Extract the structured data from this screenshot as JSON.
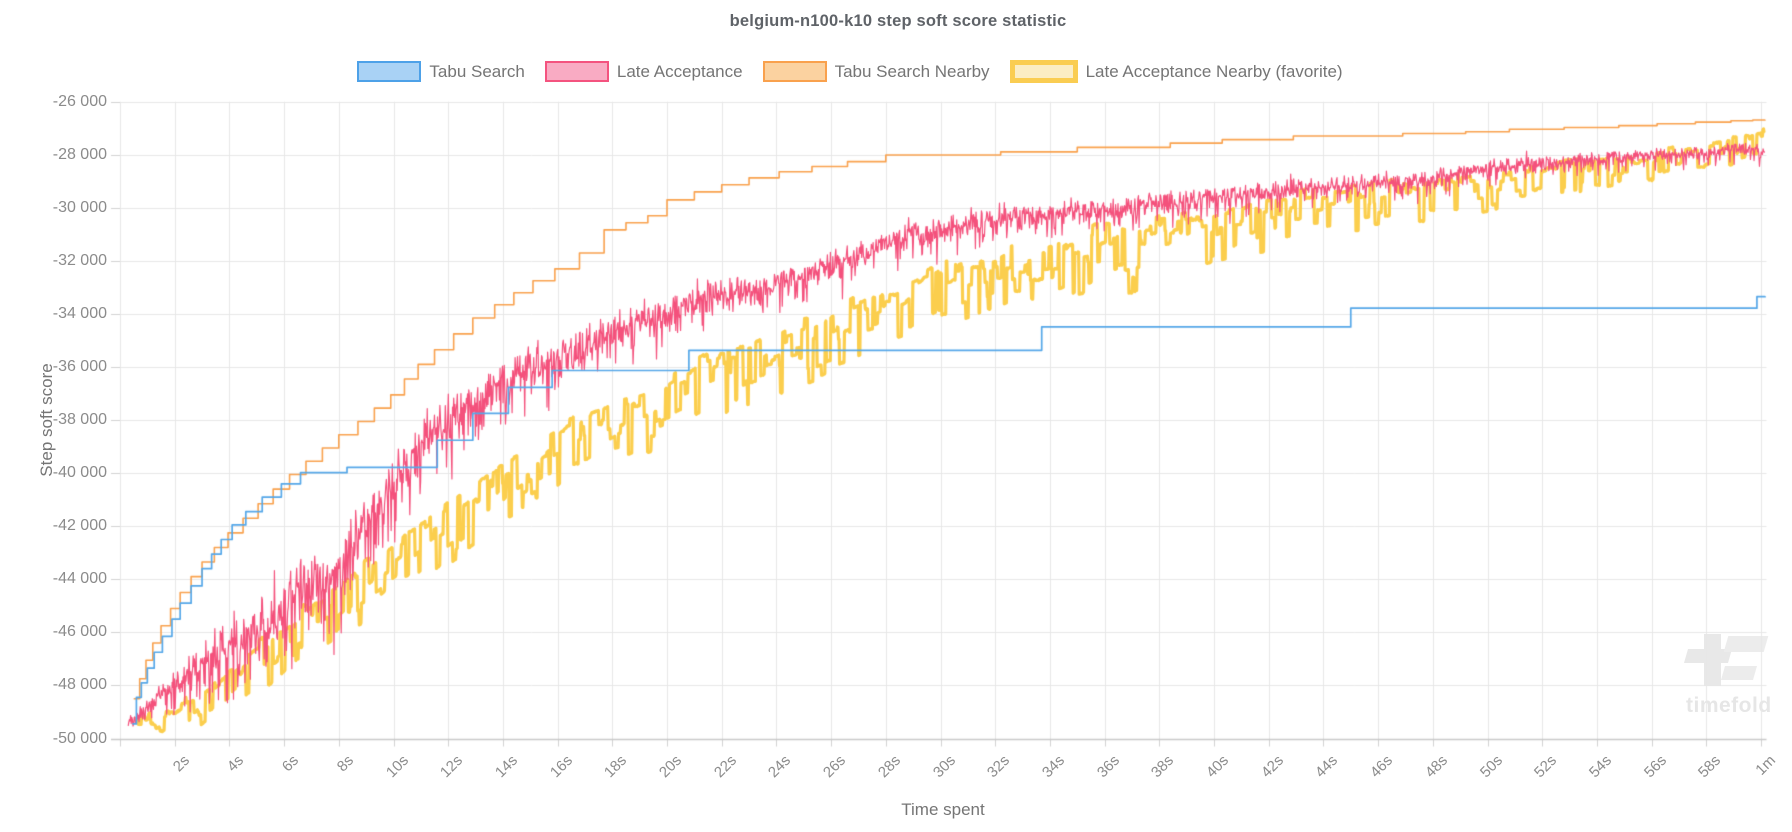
{
  "title": "belgium-n100-k10 step soft score statistic",
  "legend": {
    "items": [
      {
        "label": "Tabu Search",
        "border": "#4da1e8",
        "fill": "#a9d2f5",
        "favorite": false
      },
      {
        "label": "Late Acceptance",
        "border": "#f4537f",
        "fill": "#f9abc3",
        "favorite": false
      },
      {
        "label": "Tabu Search Nearby",
        "border": "#f9a14d",
        "fill": "#fbd2a0",
        "favorite": false
      },
      {
        "label": "Late Acceptance Nearby (favorite)",
        "border": "#facd52",
        "fill": "#fbedc4",
        "favorite": true
      }
    ]
  },
  "watermark": {
    "text": "timefold"
  },
  "chart_data": {
    "type": "line",
    "title": "belgium-n100-k10 step soft score statistic",
    "xlabel": "Time spent",
    "ylabel": "Step soft score",
    "x_unit": "seconds",
    "xlim": [
      0,
      60.2
    ],
    "ylim": [
      -50000,
      -26000
    ],
    "grid": true,
    "legend_position": "top",
    "colors": {
      "grid": "#e7e7e7",
      "axis_line": "#c9c9c9",
      "tick_mark": "#d2d2d2",
      "tick_label": "#8b8b8b",
      "title": "#5f6368"
    },
    "y_ticks": [
      {
        "value": -26000,
        "label": "-26 000"
      },
      {
        "value": -28000,
        "label": "-28 000"
      },
      {
        "value": -30000,
        "label": "-30 000"
      },
      {
        "value": -32000,
        "label": "-32 000"
      },
      {
        "value": -34000,
        "label": "-34 000"
      },
      {
        "value": -36000,
        "label": "-36 000"
      },
      {
        "value": -38000,
        "label": "-38 000"
      },
      {
        "value": -40000,
        "label": "-40 000"
      },
      {
        "value": -42000,
        "label": "-42 000"
      },
      {
        "value": -44000,
        "label": "-44 000"
      },
      {
        "value": -46000,
        "label": "-46 000"
      },
      {
        "value": -48000,
        "label": "-48 000"
      },
      {
        "value": -50000,
        "label": "-50 000"
      }
    ],
    "x_ticks": [
      {
        "t": 2,
        "label": "2s"
      },
      {
        "t": 4,
        "label": "4s"
      },
      {
        "t": 6,
        "label": "6s"
      },
      {
        "t": 8,
        "label": "8s"
      },
      {
        "t": 10,
        "label": "10s"
      },
      {
        "t": 12,
        "label": "12s"
      },
      {
        "t": 14,
        "label": "14s"
      },
      {
        "t": 16,
        "label": "16s"
      },
      {
        "t": 18,
        "label": "18s"
      },
      {
        "t": 20,
        "label": "20s"
      },
      {
        "t": 22,
        "label": "22s"
      },
      {
        "t": 24,
        "label": "24s"
      },
      {
        "t": 26,
        "label": "26s"
      },
      {
        "t": 28,
        "label": "28s"
      },
      {
        "t": 30,
        "label": "30s"
      },
      {
        "t": 32,
        "label": "32s"
      },
      {
        "t": 34,
        "label": "34s"
      },
      {
        "t": 36,
        "label": "36s"
      },
      {
        "t": 38,
        "label": "38s"
      },
      {
        "t": 40,
        "label": "40s"
      },
      {
        "t": 42,
        "label": "42s"
      },
      {
        "t": 44,
        "label": "44s"
      },
      {
        "t": 46,
        "label": "46s"
      },
      {
        "t": 48,
        "label": "48s"
      },
      {
        "t": 50,
        "label": "50s"
      },
      {
        "t": 52,
        "label": "52s"
      },
      {
        "t": 54,
        "label": "54s"
      },
      {
        "t": 56,
        "label": "56s"
      },
      {
        "t": 58,
        "label": "58s"
      },
      {
        "t": 60,
        "label": "1m"
      }
    ],
    "series": [
      {
        "name": "Late Acceptance Nearby (favorite)",
        "type": "noisy_band",
        "color": "#fbce4d",
        "line_width": 3.2,
        "draw_order": 1,
        "t_start": 0.55,
        "top_envelope": [
          [
            0.55,
            -49200
          ],
          [
            1.0,
            -49100
          ],
          [
            1.6,
            -49000
          ],
          [
            2,
            -48800
          ],
          [
            3,
            -48100
          ],
          [
            4,
            -47300
          ],
          [
            5,
            -46500
          ],
          [
            6,
            -45700
          ],
          [
            7,
            -44900
          ],
          [
            8,
            -44100
          ],
          [
            9,
            -43300
          ],
          [
            10,
            -42500
          ],
          [
            11,
            -41700
          ],
          [
            12,
            -40950
          ],
          [
            13,
            -40200
          ],
          [
            14,
            -39500
          ],
          [
            15,
            -38850
          ],
          [
            16,
            -38250
          ],
          [
            17,
            -37700
          ],
          [
            18,
            -37250
          ],
          [
            19,
            -36850
          ],
          [
            20,
            -36450
          ],
          [
            21,
            -35900
          ],
          [
            22,
            -35300
          ],
          [
            23,
            -35000
          ],
          [
            24,
            -34600
          ],
          [
            25,
            -34300
          ],
          [
            26,
            -33950
          ],
          [
            27,
            -33450
          ],
          [
            28,
            -33050
          ],
          [
            29,
            -32650
          ],
          [
            30,
            -32100
          ],
          [
            31,
            -31900
          ],
          [
            32,
            -31740
          ],
          [
            33,
            -31500
          ],
          [
            34,
            -31320
          ],
          [
            35,
            -31000
          ],
          [
            36,
            -30720
          ],
          [
            37,
            -30600
          ],
          [
            38,
            -30460
          ],
          [
            39,
            -30270
          ],
          [
            40,
            -30080
          ],
          [
            41,
            -29830
          ],
          [
            42,
            -29590
          ],
          [
            43,
            -29450
          ],
          [
            44,
            -29320
          ],
          [
            45,
            -29190
          ],
          [
            46,
            -29060
          ],
          [
            47,
            -28950
          ],
          [
            48,
            -28850
          ],
          [
            49,
            -28750
          ],
          [
            50,
            -28640
          ],
          [
            51,
            -28550
          ],
          [
            52,
            -28450
          ],
          [
            53,
            -28250
          ],
          [
            54,
            -28100
          ],
          [
            55,
            -27990
          ],
          [
            56,
            -27890
          ],
          [
            57,
            -27700
          ],
          [
            58,
            -27550
          ],
          [
            59,
            -27350
          ],
          [
            59.7,
            -27150
          ],
          [
            60.15,
            -27100
          ]
        ],
        "spike_depth": [
          [
            0.55,
            500
          ],
          [
            1.5,
            800
          ],
          [
            2,
            1100
          ],
          [
            4,
            1900
          ],
          [
            8,
            2400
          ],
          [
            12,
            2500
          ],
          [
            16,
            2500
          ],
          [
            20,
            2600
          ],
          [
            24,
            2500
          ],
          [
            28,
            2300
          ],
          [
            32,
            2200
          ],
          [
            36,
            2800
          ],
          [
            40,
            2300
          ],
          [
            44,
            1900
          ],
          [
            48,
            1600
          ],
          [
            52,
            1350
          ],
          [
            56,
            1150
          ],
          [
            60.15,
            950
          ]
        ]
      },
      {
        "name": "Late Acceptance",
        "type": "noisy",
        "color": "#f4517c",
        "line_width": 1.2,
        "draw_order": 2,
        "t_start": 0.3,
        "center": [
          [
            0.3,
            -49350
          ],
          [
            1,
            -48800
          ],
          [
            2,
            -47900
          ],
          [
            3,
            -47150
          ],
          [
            4,
            -46500
          ],
          [
            5,
            -45800
          ],
          [
            6,
            -45000
          ],
          [
            7,
            -44200
          ],
          [
            8,
            -43400
          ],
          [
            9,
            -41900
          ],
          [
            10,
            -40200
          ],
          [
            10.4,
            -39600
          ],
          [
            11,
            -38900
          ],
          [
            12,
            -37950
          ],
          [
            13,
            -37200
          ],
          [
            14,
            -36550
          ],
          [
            15,
            -36050
          ],
          [
            16,
            -35700
          ],
          [
            17,
            -35100
          ],
          [
            18,
            -34600
          ],
          [
            19,
            -34280
          ],
          [
            20,
            -33975
          ],
          [
            21,
            -33500
          ],
          [
            22,
            -33200
          ],
          [
            23,
            -33080
          ],
          [
            24,
            -32980
          ],
          [
            25,
            -32500
          ],
          [
            26,
            -32100
          ],
          [
            27,
            -31700
          ],
          [
            28,
            -31350
          ],
          [
            29,
            -31050
          ],
          [
            30,
            -30800
          ],
          [
            32,
            -30330
          ],
          [
            34,
            -30200
          ],
          [
            36,
            -30080
          ],
          [
            38,
            -29800
          ],
          [
            40,
            -29590
          ],
          [
            42,
            -29350
          ],
          [
            44,
            -29210
          ],
          [
            46,
            -29050
          ],
          [
            48,
            -28900
          ],
          [
            50,
            -28480
          ],
          [
            52,
            -28320
          ],
          [
            54,
            -28160
          ],
          [
            56,
            -28020
          ],
          [
            58,
            -27920
          ],
          [
            59.3,
            -27700
          ],
          [
            59.8,
            -27800
          ],
          [
            60.15,
            -27900
          ]
        ],
        "amplitude": [
          [
            0.3,
            500
          ],
          [
            1,
            700
          ],
          [
            2,
            1200
          ],
          [
            4,
            2200
          ],
          [
            6,
            2400
          ],
          [
            8,
            2400
          ],
          [
            10,
            2200
          ],
          [
            12,
            1900
          ],
          [
            14,
            1700
          ],
          [
            16,
            1500
          ],
          [
            18,
            1400
          ],
          [
            20,
            1300
          ],
          [
            24,
            1150
          ],
          [
            28,
            1000
          ],
          [
            32,
            900
          ],
          [
            36,
            850
          ],
          [
            40,
            800
          ],
          [
            44,
            750
          ],
          [
            48,
            680
          ],
          [
            52,
            600
          ],
          [
            56,
            520
          ],
          [
            60.15,
            430
          ]
        ]
      },
      {
        "name": "Tabu Search Nearby",
        "type": "step",
        "color": "#f9a14d",
        "line_width": 1.6,
        "draw_order": 3,
        "points": [
          [
            0.5,
            -48500
          ],
          [
            0.72,
            -47750
          ],
          [
            0.95,
            -47050
          ],
          [
            1.2,
            -46400
          ],
          [
            1.5,
            -45750
          ],
          [
            1.85,
            -45100
          ],
          [
            2.2,
            -44500
          ],
          [
            2.6,
            -43900
          ],
          [
            3.0,
            -43350
          ],
          [
            3.45,
            -42800
          ],
          [
            3.95,
            -42250
          ],
          [
            4.5,
            -41700
          ],
          [
            5.05,
            -41150
          ],
          [
            5.6,
            -40600
          ],
          [
            6.2,
            -40050
          ],
          [
            6.8,
            -39550
          ],
          [
            7.4,
            -39050
          ],
          [
            8.0,
            -38550
          ],
          [
            8.7,
            -38050
          ],
          [
            9.3,
            -37550
          ],
          [
            9.9,
            -37050
          ],
          [
            10.4,
            -36450
          ],
          [
            10.9,
            -35900
          ],
          [
            11.5,
            -35350
          ],
          [
            12.2,
            -34750
          ],
          [
            12.9,
            -34150
          ],
          [
            13.7,
            -33650
          ],
          [
            14.4,
            -33200
          ],
          [
            15.1,
            -32750
          ],
          [
            15.9,
            -32300
          ],
          [
            16.8,
            -31700
          ],
          [
            17.7,
            -30830
          ],
          [
            18.5,
            -30560
          ],
          [
            19.3,
            -30300
          ],
          [
            20.0,
            -29700
          ],
          [
            21.0,
            -29400
          ],
          [
            22.0,
            -29130
          ],
          [
            23.0,
            -28870
          ],
          [
            24.1,
            -28640
          ],
          [
            25.3,
            -28440
          ],
          [
            26.6,
            -28260
          ],
          [
            28.0,
            -28010
          ],
          [
            32.2,
            -27890
          ],
          [
            35.0,
            -27720
          ],
          [
            38.4,
            -27560
          ],
          [
            40.3,
            -27430
          ],
          [
            42.9,
            -27290
          ],
          [
            46.9,
            -27200
          ],
          [
            49.2,
            -27130
          ],
          [
            50.8,
            -27040
          ],
          [
            52.8,
            -26970
          ],
          [
            54.8,
            -26900
          ],
          [
            56.2,
            -26830
          ],
          [
            57.6,
            -26770
          ],
          [
            58.9,
            -26720
          ],
          [
            59.7,
            -26690
          ],
          [
            60.15,
            -26680
          ]
        ]
      },
      {
        "name": "Tabu Search",
        "type": "step",
        "color": "#55a7e8",
        "line_width": 1.7,
        "draw_order": 4,
        "points": [
          [
            0.45,
            -49450
          ],
          [
            0.6,
            -48450
          ],
          [
            0.78,
            -47900
          ],
          [
            1.0,
            -47350
          ],
          [
            1.25,
            -46750
          ],
          [
            1.55,
            -46150
          ],
          [
            1.9,
            -45500
          ],
          [
            2.2,
            -44900
          ],
          [
            2.6,
            -44250
          ],
          [
            3.0,
            -43600
          ],
          [
            3.35,
            -43050
          ],
          [
            3.7,
            -42500
          ],
          [
            4.1,
            -41950
          ],
          [
            4.6,
            -41450
          ],
          [
            5.2,
            -40900
          ],
          [
            5.9,
            -40400
          ],
          [
            6.6,
            -39980
          ],
          [
            8.3,
            -39780
          ],
          [
            11.6,
            -38760
          ],
          [
            12.9,
            -37750
          ],
          [
            14.2,
            -36770
          ],
          [
            15.8,
            -36130
          ],
          [
            20.8,
            -35370
          ],
          [
            33.7,
            -34490
          ],
          [
            45.0,
            -33780
          ],
          [
            59.85,
            -33350
          ],
          [
            60.15,
            -33330
          ]
        ]
      }
    ]
  }
}
